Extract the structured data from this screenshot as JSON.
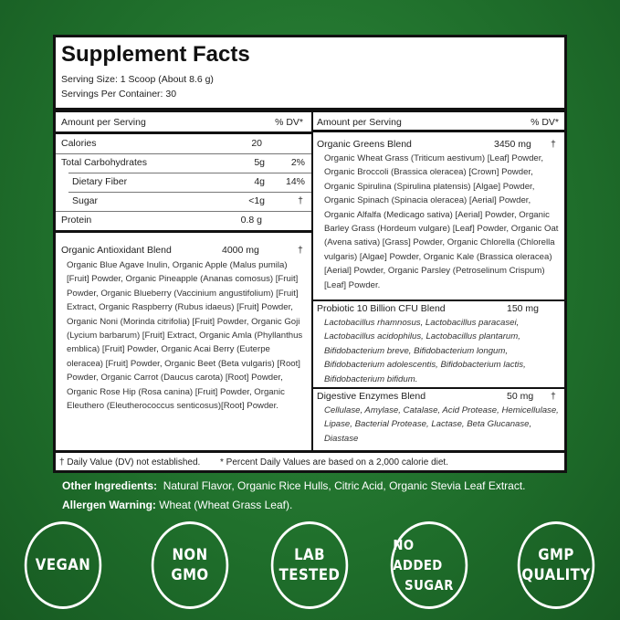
{
  "header": {
    "title": "Supplement Facts",
    "serving_size": "Serving Size: 1 Scoop (About 8.6 g)",
    "servings_per_container": "Servings Per Container: 30"
  },
  "left": {
    "header": {
      "amount": "Amount per Serving",
      "dv": "% DV*"
    },
    "rows": [
      [
        "Calories",
        "20"
      ],
      [
        "Total Carbohydrates",
        "5g",
        "2%"
      ],
      [
        "Dietary Fiber",
        "4g",
        "14%"
      ],
      [
        "Sugar",
        "<1g",
        "†"
      ],
      [
        "Protein",
        "0.8 g"
      ]
    ],
    "blend": {
      "name": "Organic Antioxidant Blend",
      "amount": "4000 mg",
      "mark": "†",
      "ingredients": "Organic Blue Agave Inulin, Organic Apple (Malus pumila) [Fruit] Powder, Organic Pineapple (Ananas comosus) [Fruit] Powder, Organic Blueberry (Vaccinium angustifolium) [Fruit] Extract, Organic Raspberry (Rubus idaeus) [Fruit] Powder, Organic Noni (Morinda citrifolia) [Fruit] Powder, Organic Goji (Lycium barbarum) [Fruit] Extract, Organic Amla (Phyllanthus emblica) [Fruit] Powder, Organic Acai Berry (Euterpe oleracea) [Fruit] Powder, Organic Beet (Beta vulgaris) [Root] Powder, Organic Carrot (Daucus carota) [Root] Powder, Organic Rose Hip (Rosa canina) [Fruit] Powder, Organic Eleuthero (Eleutherococcus senticosus)[Root] Powder."
    }
  },
  "right": {
    "header": {
      "amount": "Amount per Serving",
      "dv": "% DV*"
    },
    "blends": [
      {
        "name": "Organic Greens Blend",
        "amount": "3450 mg",
        "mark": "†",
        "ingredients": "Organic Wheat Grass (Triticum aestivum) [Leaf] Powder, Organic Broccoli (Brassica oleracea) [Crown] Powder, Organic Spirulina (Spirulina platensis) [Algae] Powder, Organic Spinach (Spinacia oleracea) [Aerial] Powder, Organic Alfalfa (Medicago sativa) [Aerial] Powder, Organic Barley Grass (Hordeum vulgare) [Leaf] Powder, Organic Oat (Avena sativa) [Grass] Powder, Organic Chlorella (Chlorella vulgaris) [Algae] Powder, Organic Kale (Brassica oleracea) [Aerial] Powder, Organic Parsley (Petroselinum Crispum) [Leaf] Powder."
      },
      {
        "name": "Probiotic 10 Billion CFU Blend",
        "amount": "150 mg",
        "ingredients": "Lactobacillus rhamnosus, Lactobacillus paracasei, Lactobacillus acidophilus, Lactobacillus plantarum, Bifidobacterium breve, Bifidobacterium longum, Bifidobacterium adolescentis, Bifidobacterium lactis, Bifidobacterium bifidum."
      },
      {
        "name": "Digestive Enzymes Blend",
        "amount": "50 mg",
        "mark": "†",
        "ingredients": "Cellulase, Amylase, Catalase, Acid Protease, Hemicellulase, Lipase, Bacterial Protease, Lactase, Beta Glucanase, Diastase"
      }
    ]
  },
  "footer": {
    "dagger_note": "† Daily Value (DV) not established.",
    "percent_note": "* Percent Daily Values are based on a 2,000 calorie diet."
  },
  "other_ingredients": {
    "label": "Other Ingredients:",
    "text": "Natural Flavor, Organic Rice Hulls, Citric Acid, Organic Stevia Leaf Extract."
  },
  "allergen": {
    "label": "Allergen Warning:",
    "text": "Wheat (Wheat Grass Leaf)."
  },
  "badges": [
    [
      "VEGAN"
    ],
    [
      "NON",
      "GMO"
    ],
    [
      "LAB",
      "TESTED"
    ],
    [
      "NO ADDED",
      "SUGAR"
    ],
    [
      "GMP",
      "QUALITY"
    ]
  ]
}
